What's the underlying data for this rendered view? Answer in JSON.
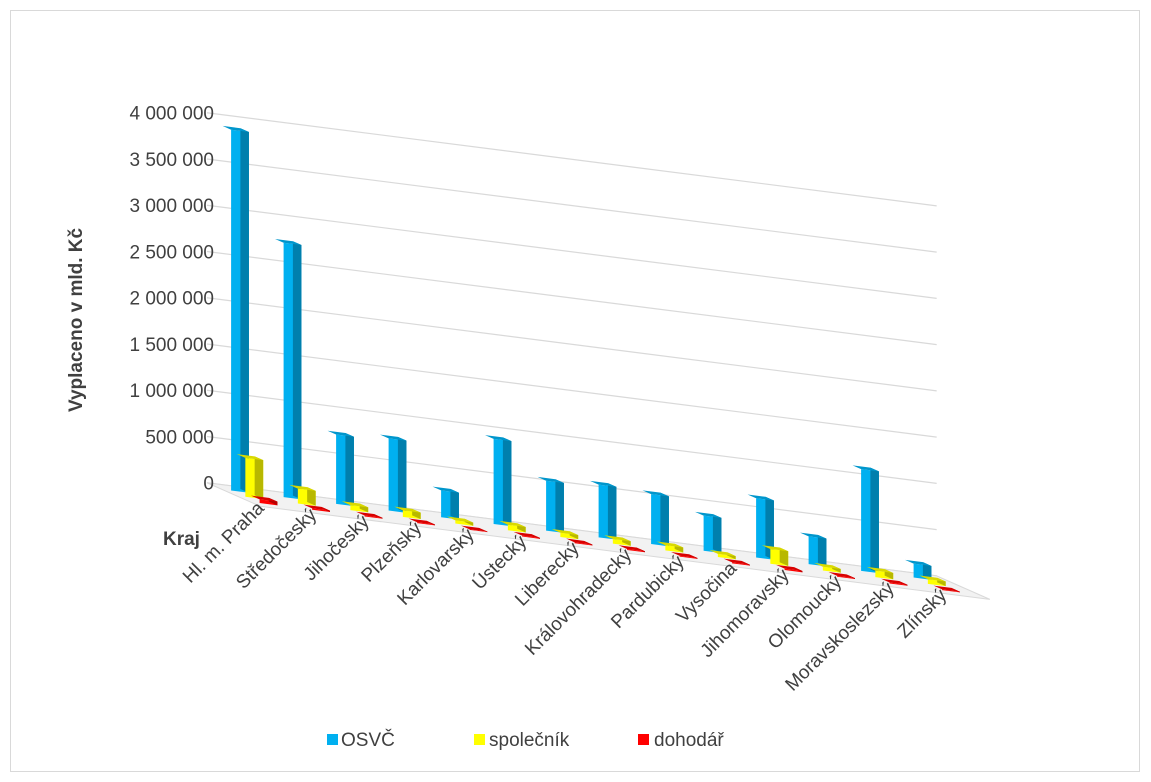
{
  "chart_data": {
    "type": "bar",
    "categories": [
      "Hl. m. Praha",
      "Středočeský",
      "Jihočeský",
      "Plzeňský",
      "Karlovarský",
      "Ústecký",
      "Liberecký",
      "Královohradecký",
      "Pardubický",
      "Vysočina",
      "Jihomoravský",
      "Olomoucký",
      "Moravskoslezský",
      "Zlínský"
    ],
    "series": [
      {
        "name": "OSVČ",
        "color": "#00b0f0",
        "values": [
          3900000,
          2750000,
          750000,
          780000,
          290000,
          920000,
          540000,
          570000,
          540000,
          380000,
          640000,
          300000,
          1100000,
          150000
        ]
      },
      {
        "name": "společník",
        "color": "#ffff00",
        "values": [
          420000,
          160000,
          55000,
          70000,
          35000,
          60000,
          45000,
          50000,
          55000,
          35000,
          160000,
          40000,
          70000,
          50000
        ]
      },
      {
        "name": "dohodář",
        "color": "#ff0000",
        "values": [
          40000,
          15000,
          10000,
          10000,
          5000,
          10000,
          10000,
          10000,
          10000,
          10000,
          15000,
          10000,
          10000,
          8000
        ]
      }
    ],
    "ylabel": "Vyplaceno v mld. Kč",
    "xlabel": "Kraj",
    "ylim": [
      0,
      4000000
    ],
    "yticks": [
      "0",
      "500 000",
      "1 000 000",
      "1 500 000",
      "2 000 000",
      "2 500 000",
      "3 000 000",
      "3 500 000",
      "4 000 000"
    ],
    "grid": true,
    "legend": "bottom"
  }
}
